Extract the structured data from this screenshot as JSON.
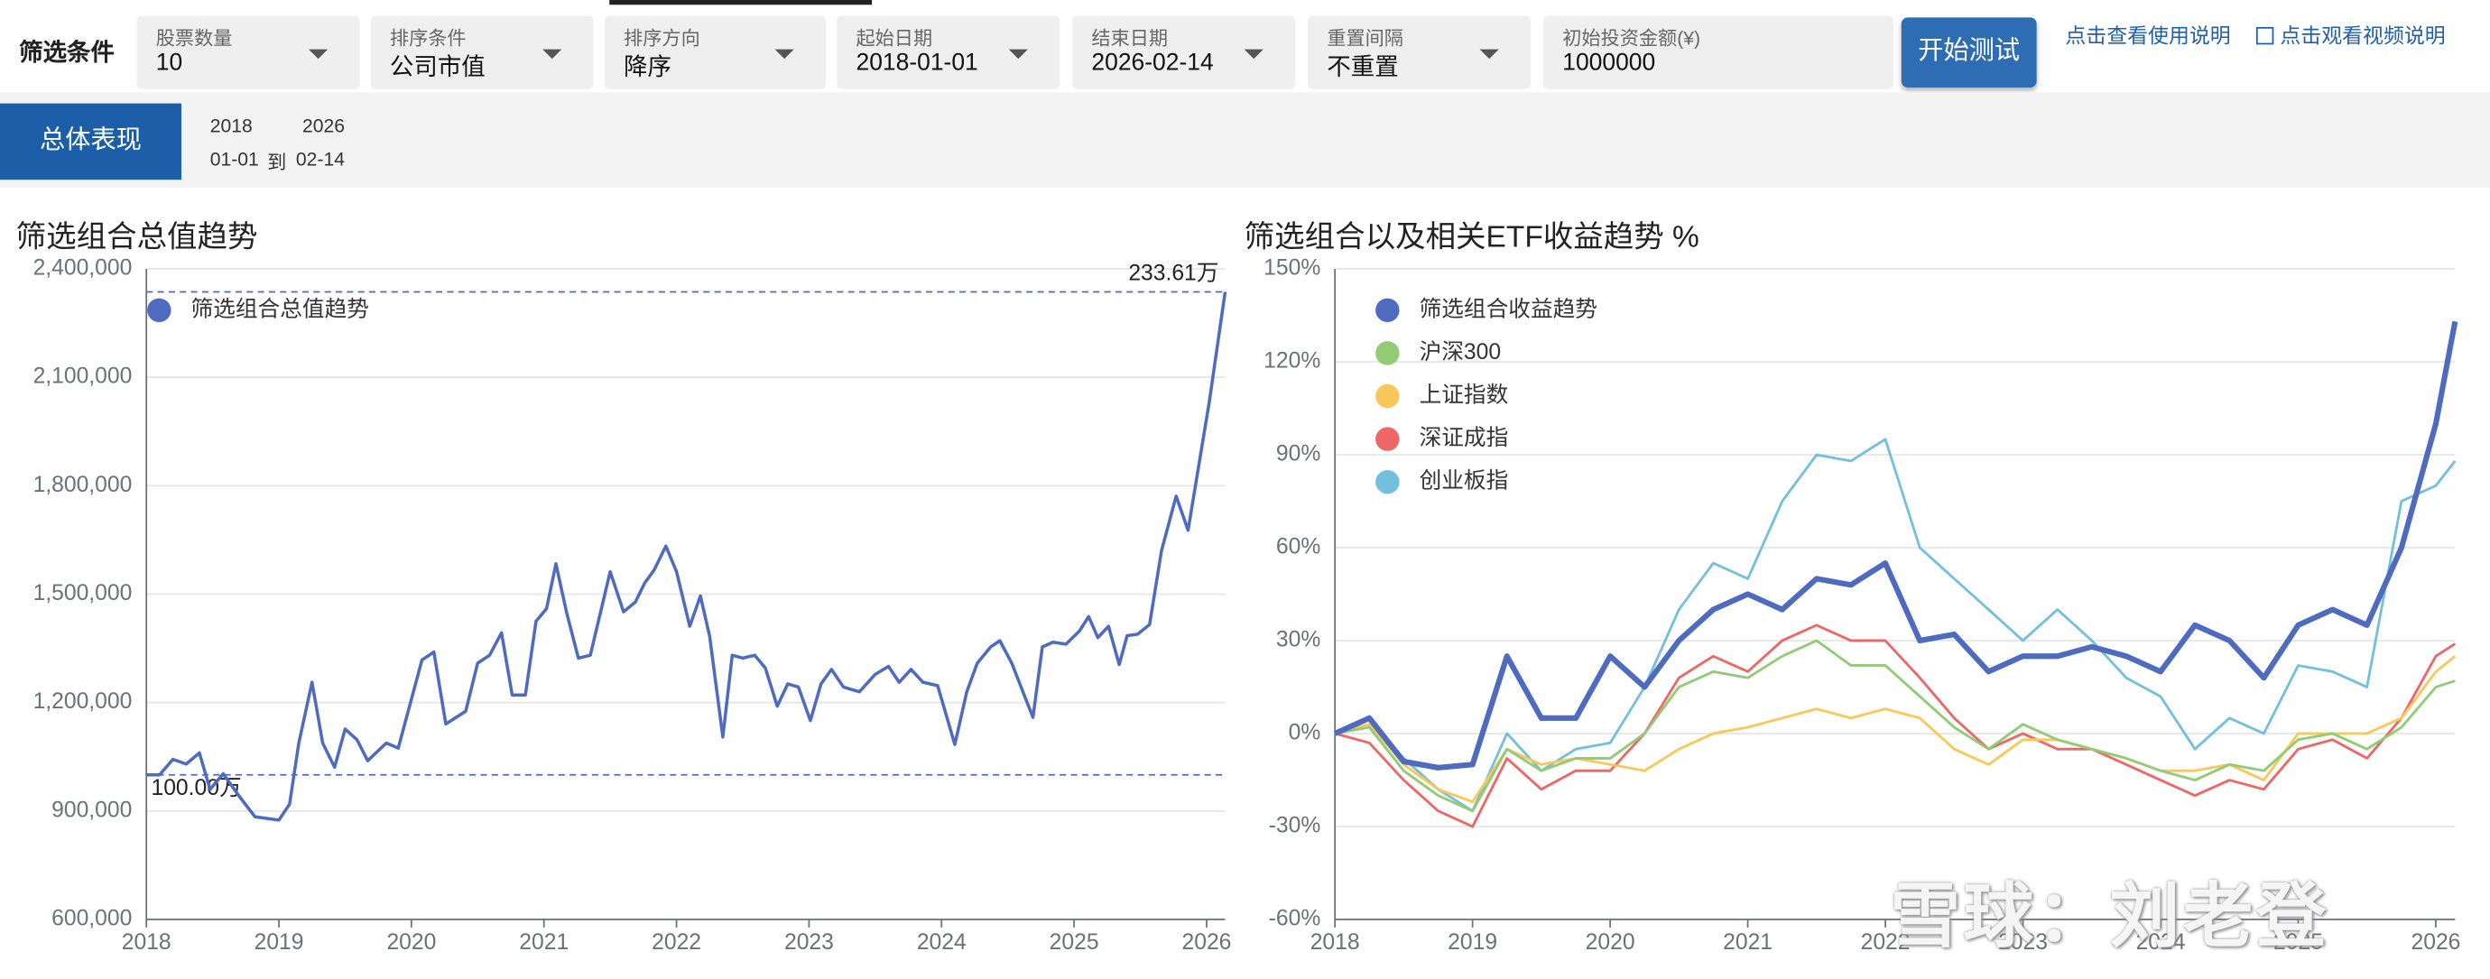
{
  "toolbar": {
    "title": "筛选条件",
    "filters": [
      {
        "label": "股票数量",
        "value": "10",
        "dropdown": true
      },
      {
        "label": "排序条件",
        "value": "公司市值",
        "dropdown": true
      },
      {
        "label": "排序方向",
        "value": "降序",
        "dropdown": true
      },
      {
        "label": "起始日期",
        "value": "2018-01-01",
        "dropdown": true
      },
      {
        "label": "结束日期",
        "value": "2026-02-14",
        "dropdown": true
      },
      {
        "label": "重置间隔",
        "value": "不重置",
        "dropdown": true
      },
      {
        "label": "初始投资金额(¥)",
        "value": "1000000",
        "dropdown": false
      }
    ],
    "button": "开始测试",
    "links": [
      "点击查看使用说明",
      "点击观看视频说明"
    ]
  },
  "tab": "总体表现",
  "date_range": {
    "start_year": "2018",
    "end_year": "2026",
    "start_day": "01-01",
    "separator": "到",
    "end_day": "02-14"
  },
  "watermark": "雪球：刘老登",
  "chart_data": [
    {
      "type": "line",
      "title": "筛选组合总值趋势",
      "x": [
        2018.0,
        2018.1,
        2018.2,
        2018.3,
        2018.4,
        2018.48,
        2018.58,
        2018.7,
        2018.82,
        2019.0,
        2019.08,
        2019.15,
        2019.25,
        2019.33,
        2019.42,
        2019.5,
        2019.59,
        2019.67,
        2019.81,
        2019.9,
        2020.08,
        2020.17,
        2020.26,
        2020.41,
        2020.5,
        2020.59,
        2020.68,
        2020.76,
        2020.86,
        2020.94,
        2021.02,
        2021.09,
        2021.17,
        2021.26,
        2021.35,
        2021.5,
        2021.6,
        2021.69,
        2021.76,
        2021.83,
        2021.92,
        2022.0,
        2022.1,
        2022.18,
        2022.25,
        2022.35,
        2022.42,
        2022.5,
        2022.59,
        2022.67,
        2022.76,
        2022.84,
        2022.92,
        2023.01,
        2023.09,
        2023.17,
        2023.26,
        2023.38,
        2023.5,
        2023.6,
        2023.68,
        2023.77,
        2023.86,
        2023.97,
        2024.1,
        2024.19,
        2024.27,
        2024.37,
        2024.44,
        2024.53,
        2024.69,
        2024.76,
        2024.84,
        2024.94,
        2025.04,
        2025.11,
        2025.18,
        2025.26,
        2025.34,
        2025.4,
        2025.48,
        2025.57,
        2025.66,
        2025.77,
        2025.86,
        2026.02,
        2026.14
      ],
      "series": [
        {
          "name": "筛选组合总值趋势",
          "color": "#4e6bc0",
          "values": [
            1000000,
            1000000,
            1043000,
            1030000,
            1061000,
            960000,
            1003000,
            941000,
            884000,
            875000,
            919000,
            1088000,
            1256000,
            1088000,
            1021000,
            1127000,
            1097000,
            1039000,
            1088000,
            1074000,
            1318000,
            1340000,
            1141000,
            1176000,
            1309000,
            1331000,
            1393000,
            1221000,
            1221000,
            1425000,
            1460000,
            1584000,
            1451000,
            1323000,
            1331000,
            1562000,
            1451000,
            1478000,
            1531000,
            1566000,
            1633000,
            1562000,
            1411000,
            1495000,
            1384000,
            1105000,
            1331000,
            1323000,
            1331000,
            1296000,
            1190000,
            1252000,
            1243000,
            1150000,
            1252000,
            1292000,
            1243000,
            1230000,
            1278000,
            1300000,
            1256000,
            1292000,
            1256000,
            1247000,
            1084000,
            1230000,
            1309000,
            1354000,
            1371000,
            1309000,
            1159000,
            1354000,
            1367000,
            1362000,
            1398000,
            1438000,
            1380000,
            1411000,
            1305000,
            1385000,
            1389000,
            1416000,
            1620000,
            1771000,
            1677000,
            2031000,
            2336100
          ]
        }
      ],
      "xlim": [
        2018,
        2026.14
      ],
      "xticks": [
        2018,
        2019,
        2020,
        2021,
        2022,
        2023,
        2024,
        2025,
        2026
      ],
      "ylim": [
        600000,
        2400000
      ],
      "yticks": [
        {
          "value": 600000,
          "label": "600,000"
        },
        {
          "value": 900000,
          "label": "900,000"
        },
        {
          "value": 1200000,
          "label": "1,200,000"
        },
        {
          "value": 1500000,
          "label": "1,500,000"
        },
        {
          "value": 1800000,
          "label": "1,800,000"
        },
        {
          "value": 2100000,
          "label": "2,100,000"
        },
        {
          "value": 2400000,
          "label": "2,400,000"
        }
      ],
      "annotations": [
        {
          "label": "233.61万",
          "value": 2336100
        },
        {
          "label": "100.00万",
          "value": 1000000
        }
      ],
      "grid": true,
      "legend": "top-left"
    },
    {
      "type": "line",
      "title": "筛选组合以及相关ETF收益趋势 %",
      "x": [
        2018,
        2018.25,
        2018.5,
        2018.75,
        2019,
        2019.25,
        2019.5,
        2019.75,
        2020,
        2020.25,
        2020.5,
        2020.75,
        2021,
        2021.25,
        2021.5,
        2021.75,
        2022,
        2022.25,
        2022.5,
        2022.75,
        2023,
        2023.25,
        2023.5,
        2023.75,
        2024,
        2024.25,
        2024.5,
        2024.75,
        2025,
        2025.25,
        2025.5,
        2025.75,
        2026,
        2026.14
      ],
      "series": [
        {
          "name": "筛选组合收益趋势",
          "color": "#4e6bc0",
          "values": [
            0,
            5,
            -9,
            -11,
            -10,
            25,
            5,
            5,
            25,
            15,
            30,
            40,
            45,
            40,
            50,
            48,
            55,
            30,
            32,
            20,
            25,
            25,
            28,
            25,
            20,
            35,
            30,
            18,
            35,
            40,
            35,
            60,
            100,
            133
          ]
        },
        {
          "name": "沪深300",
          "color": "#91cc75",
          "values": [
            0,
            2,
            -12,
            -20,
            -25,
            -5,
            -12,
            -8,
            -8,
            0,
            15,
            20,
            18,
            25,
            30,
            22,
            22,
            12,
            2,
            -5,
            3,
            -2,
            -5,
            -8,
            -12,
            -15,
            -10,
            -12,
            -2,
            0,
            -5,
            2,
            15,
            17
          ]
        },
        {
          "name": "上证指数",
          "color": "#fac858",
          "values": [
            0,
            3,
            -10,
            -18,
            -22,
            -5,
            -10,
            -8,
            -10,
            -12,
            -5,
            0,
            2,
            5,
            8,
            5,
            8,
            5,
            -5,
            -10,
            -2,
            -2,
            -5,
            -8,
            -12,
            -12,
            -10,
            -15,
            0,
            0,
            0,
            5,
            20,
            25
          ]
        },
        {
          "name": "深证成指",
          "color": "#ee6666",
          "values": [
            0,
            -3,
            -15,
            -25,
            -30,
            -8,
            -18,
            -12,
            -12,
            0,
            18,
            25,
            20,
            30,
            35,
            30,
            30,
            18,
            5,
            -5,
            0,
            -5,
            -5,
            -10,
            -15,
            -20,
            -15,
            -18,
            -5,
            -2,
            -8,
            5,
            25,
            29
          ]
        },
        {
          "name": "创业板指",
          "color": "#73c0de",
          "values": [
            0,
            3,
            -8,
            -18,
            -25,
            0,
            -12,
            -5,
            -3,
            15,
            40,
            55,
            50,
            75,
            90,
            88,
            95,
            60,
            50,
            40,
            30,
            40,
            30,
            18,
            12,
            -5,
            5,
            0,
            22,
            20,
            15,
            75,
            80,
            88
          ]
        }
      ],
      "xlim": [
        2018,
        2026.14
      ],
      "xticks": [
        2018,
        2019,
        2020,
        2021,
        2022,
        2023,
        2024,
        2025,
        2026
      ],
      "ylim": [
        -60,
        150
      ],
      "yticks": [
        {
          "value": -60,
          "label": "-60%"
        },
        {
          "value": -30,
          "label": "-30%"
        },
        {
          "value": 0,
          "label": "0%"
        },
        {
          "value": 30,
          "label": "30%"
        },
        {
          "value": 60,
          "label": "60%"
        },
        {
          "value": 90,
          "label": "90%"
        },
        {
          "value": 120,
          "label": "120%"
        },
        {
          "value": 150,
          "label": "150%"
        }
      ],
      "grid": true,
      "legend": "top-left"
    }
  ]
}
